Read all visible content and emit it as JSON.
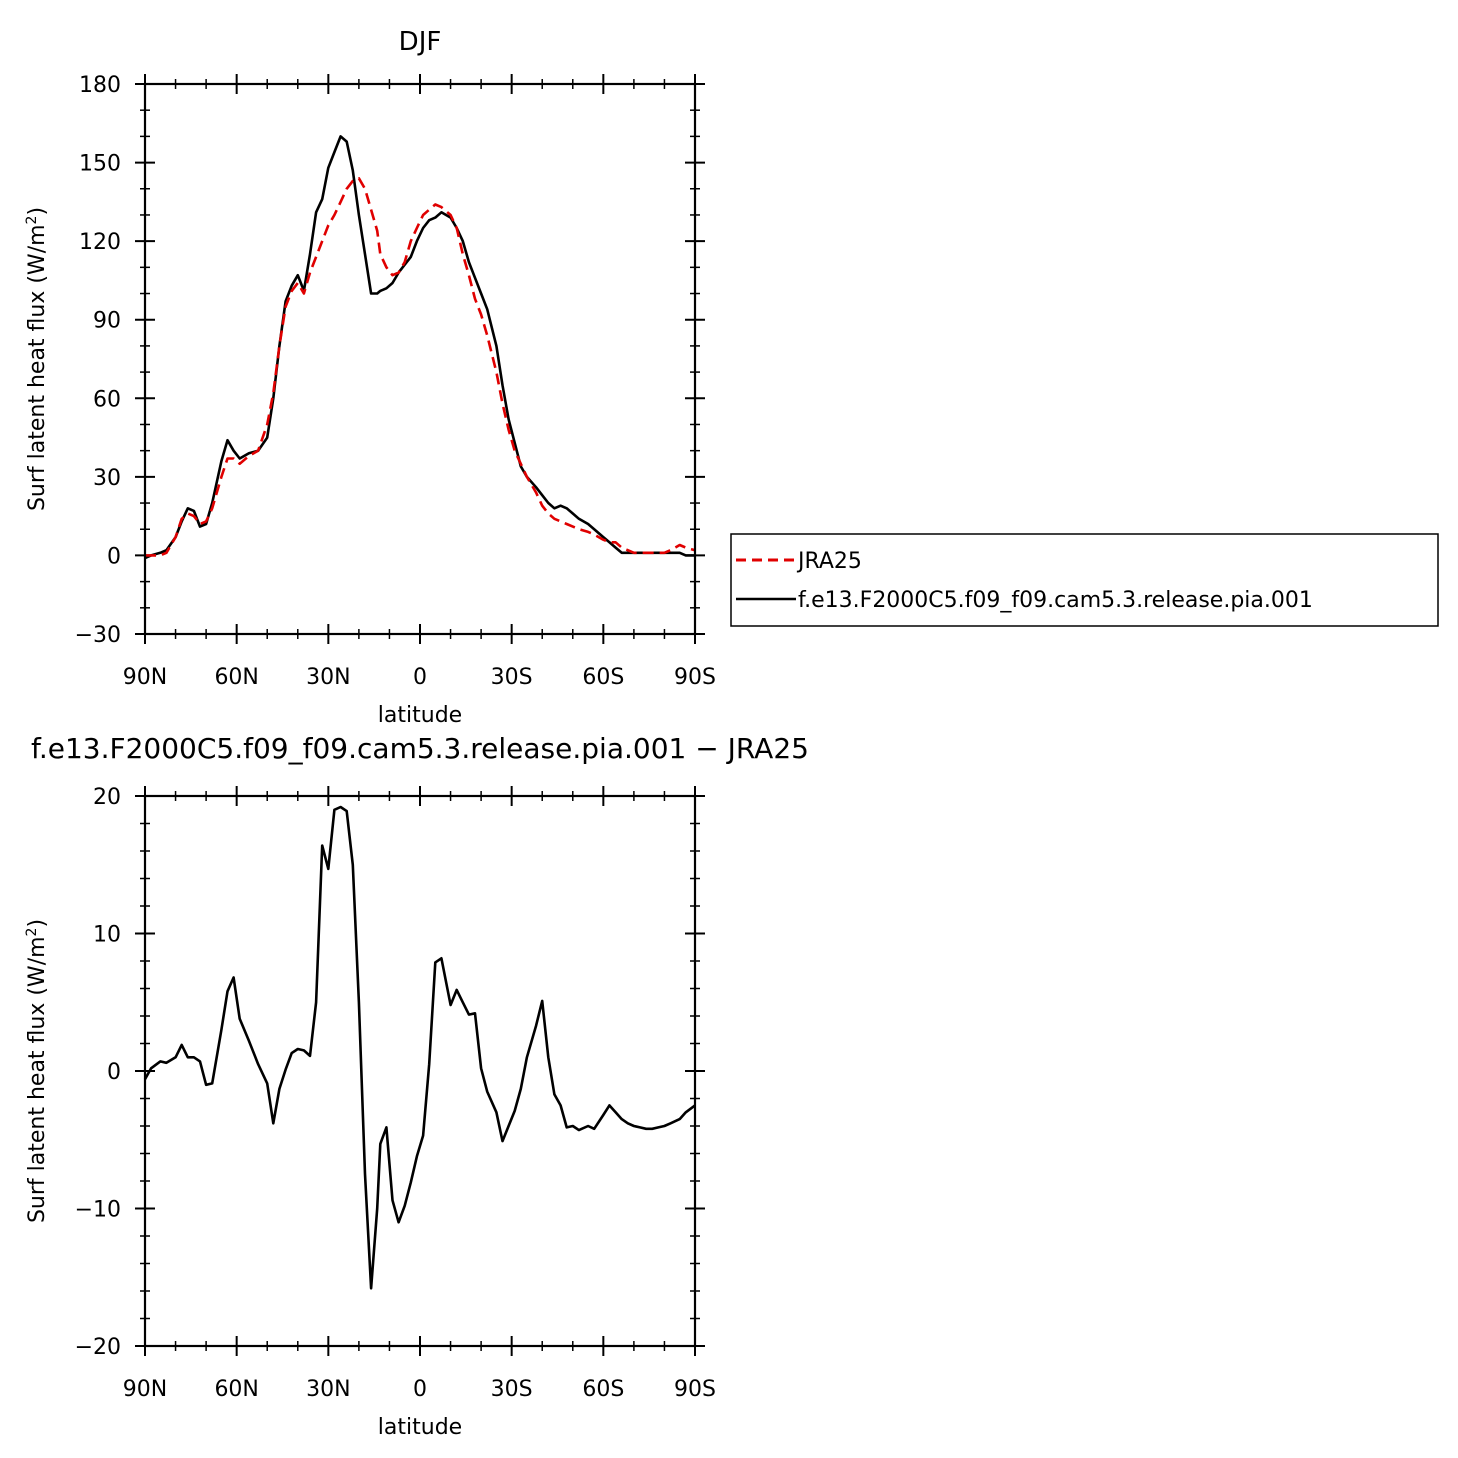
{
  "chart_data": [
    {
      "type": "line",
      "title": "DJF",
      "xlabel": "latitude",
      "ylabel_main": "Surf latent heat flux (W/m",
      "ylabel_sup": "2",
      "ylabel_close": ")",
      "xlim": [
        90,
        -90
      ],
      "ylim": [
        -30,
        180
      ],
      "x_ticks": [
        {
          "value": 90,
          "label": "90N"
        },
        {
          "value": 60,
          "label": "60N"
        },
        {
          "value": 30,
          "label": "30N"
        },
        {
          "value": 0,
          "label": "0"
        },
        {
          "value": -30,
          "label": "30S"
        },
        {
          "value": -60,
          "label": "60S"
        },
        {
          "value": -90,
          "label": "90S"
        }
      ],
      "y_ticks": [
        {
          "value": 180,
          "label": "180"
        },
        {
          "value": 150,
          "label": "150"
        },
        {
          "value": 120,
          "label": "120"
        },
        {
          "value": 90,
          "label": "90"
        },
        {
          "value": 60,
          "label": "60"
        },
        {
          "value": 30,
          "label": "30"
        },
        {
          "value": 0,
          "label": "0"
        },
        {
          "value": -30,
          "label": "−30"
        }
      ],
      "legend_position": "right",
      "series": [
        {
          "name": "JRA25",
          "color": "#e00000",
          "dash": true,
          "x": [
            90,
            88,
            85,
            83,
            80,
            78,
            76,
            74,
            72,
            70,
            68,
            65,
            63,
            61,
            59,
            56,
            53,
            50,
            48,
            46,
            44,
            42,
            40,
            38,
            36,
            34,
            32,
            30,
            28,
            26,
            24,
            22,
            20,
            18,
            16,
            14,
            13,
            11,
            9,
            7,
            5,
            3,
            1,
            -1,
            -3,
            -5,
            -7,
            -10,
            -12,
            -14,
            -16,
            -18,
            -20,
            -22,
            -25,
            -27,
            -29,
            -31,
            -33,
            -35,
            -38,
            -40,
            -42,
            -44,
            -46,
            -48,
            -50,
            -52,
            -55,
            -57,
            -60,
            -62,
            -64,
            -66,
            -68,
            -70,
            -72,
            -74,
            -76,
            -78,
            -80,
            -82,
            -85,
            -87,
            -90
          ],
          "y": [
            0,
            0,
            0,
            1,
            7,
            14,
            16,
            15,
            12,
            13,
            18,
            30,
            37,
            37,
            35,
            38,
            40,
            50,
            62,
            80,
            95,
            101,
            104,
            100,
            108,
            114,
            120,
            126,
            130,
            135,
            140,
            143,
            144,
            140,
            132,
            124,
            115,
            110,
            107,
            108,
            112,
            120,
            125,
            130,
            132,
            134,
            133,
            130,
            125,
            115,
            107,
            98,
            92,
            84,
            70,
            58,
            48,
            40,
            35,
            30,
            24,
            19,
            16,
            14,
            13,
            12,
            11,
            10,
            9,
            8,
            6,
            5,
            5,
            3,
            2,
            1,
            1,
            1,
            1,
            1,
            1,
            2,
            4,
            3,
            2
          ]
        },
        {
          "name": "f.e13.F2000C5.f09_f09.cam5.3.release.pia.001",
          "color": "#000000",
          "dash": false,
          "x": [
            90,
            88,
            85,
            83,
            80,
            78,
            76,
            74,
            72,
            70,
            68,
            65,
            63,
            61,
            59,
            56,
            53,
            50,
            48,
            46,
            44,
            42,
            40,
            38,
            36,
            34,
            32,
            30,
            28,
            26,
            24,
            22,
            20,
            18,
            16,
            14,
            13,
            11,
            9,
            7,
            5,
            3,
            1,
            -1,
            -3,
            -5,
            -7,
            -10,
            -12,
            -14,
            -16,
            -18,
            -20,
            -22,
            -25,
            -27,
            -29,
            -31,
            -33,
            -35,
            -38,
            -40,
            -42,
            -44,
            -46,
            -48,
            -50,
            -52,
            -55,
            -57,
            -60,
            -62,
            -64,
            -66,
            -68,
            -70,
            -72,
            -74,
            -76,
            -78,
            -80,
            -82,
            -85,
            -87,
            -90
          ],
          "y": [
            -1,
            0,
            1,
            2,
            7,
            13,
            18,
            17,
            11,
            12,
            20,
            36,
            44,
            40,
            37,
            39,
            40,
            45,
            60,
            80,
            97,
            103,
            107,
            101,
            115,
            131,
            136,
            148,
            154,
            160,
            158,
            147,
            130,
            115,
            100,
            100,
            101,
            102,
            104,
            108,
            111,
            114,
            120,
            125,
            128,
            129,
            131,
            129,
            125,
            120,
            112,
            106,
            100,
            94,
            80,
            65,
            52,
            43,
            34,
            30,
            26,
            23,
            20,
            18,
            19,
            18,
            16,
            14,
            12,
            10,
            7,
            5,
            3,
            1,
            1,
            1,
            1,
            1,
            1,
            1,
            1,
            1,
            1,
            0,
            0
          ]
        }
      ]
    },
    {
      "type": "line",
      "title": "f.e13.F2000C5.f09_f09.cam5.3.release.pia.001 − JRA25",
      "xlabel": "latitude",
      "ylabel_main": "Surf latent heat flux (W/m",
      "ylabel_sup": "2",
      "ylabel_close": ")",
      "xlim": [
        90,
        -90
      ],
      "ylim": [
        -20,
        20
      ],
      "x_ticks": [
        {
          "value": 90,
          "label": "90N"
        },
        {
          "value": 60,
          "label": "60N"
        },
        {
          "value": 30,
          "label": "30N"
        },
        {
          "value": 0,
          "label": "0"
        },
        {
          "value": -30,
          "label": "30S"
        },
        {
          "value": -60,
          "label": "60S"
        },
        {
          "value": -90,
          "label": "90S"
        }
      ],
      "y_ticks": [
        {
          "value": 20,
          "label": "20"
        },
        {
          "value": 10,
          "label": "10"
        },
        {
          "value": 0,
          "label": "0"
        },
        {
          "value": -10,
          "label": "−10"
        },
        {
          "value": -20,
          "label": "−20"
        }
      ],
      "series": [
        {
          "color": "#000000",
          "x": [
            90,
            88,
            85,
            83,
            80,
            78,
            76,
            74,
            72,
            70,
            68,
            65,
            63,
            61,
            59,
            56,
            53,
            50,
            48,
            46,
            44,
            42,
            40,
            38,
            36,
            34,
            32,
            30,
            28,
            26,
            24,
            22,
            20,
            18,
            16,
            14,
            13,
            11,
            9,
            7,
            5,
            3,
            1,
            -1,
            -3,
            -5,
            -7,
            -10,
            -12,
            -14,
            -16,
            -18,
            -20,
            -22,
            -25,
            -27,
            -29,
            -31,
            -33,
            -35,
            -38,
            -40,
            -42,
            -44,
            -46,
            -48,
            -50,
            -52,
            -55,
            -57,
            -60,
            -62,
            -64,
            -66,
            -68,
            -70,
            -72,
            -74,
            -76,
            -78,
            -80,
            -82,
            -85,
            -87,
            -90
          ],
          "y": [
            -0.6,
            0.2,
            0.7,
            0.6,
            1.0,
            1.9,
            1.0,
            1.0,
            0.7,
            -1.0,
            -0.9,
            3.0,
            5.8,
            6.8,
            3.8,
            2.2,
            0.5,
            -0.9,
            -3.8,
            -1.3,
            0.1,
            1.3,
            1.6,
            1.5,
            1.1,
            5.0,
            16.4,
            14.7,
            19.0,
            19.2,
            18.9,
            15.0,
            5.0,
            -7.5,
            -15.8,
            -10.0,
            -5.3,
            -4.1,
            -9.4,
            -11.0,
            -9.8,
            -8.1,
            -6.2,
            -4.7,
            0.5,
            7.9,
            8.2,
            4.8,
            5.9,
            5.0,
            4.1,
            4.2,
            0.2,
            -1.5,
            -3.0,
            -5.1,
            -4.0,
            -2.9,
            -1.3,
            1.0,
            3.3,
            5.1,
            1.0,
            -1.7,
            -2.5,
            -4.1,
            -4.0,
            -4.3,
            -4.0,
            -4.2,
            -3.2,
            -2.5,
            -3.0,
            -3.5,
            -3.8,
            -4.0,
            -4.1,
            -4.2,
            -4.2,
            -4.1,
            -4.0,
            -3.8,
            -3.5,
            -3.0,
            -2.5
          ]
        }
      ]
    }
  ]
}
